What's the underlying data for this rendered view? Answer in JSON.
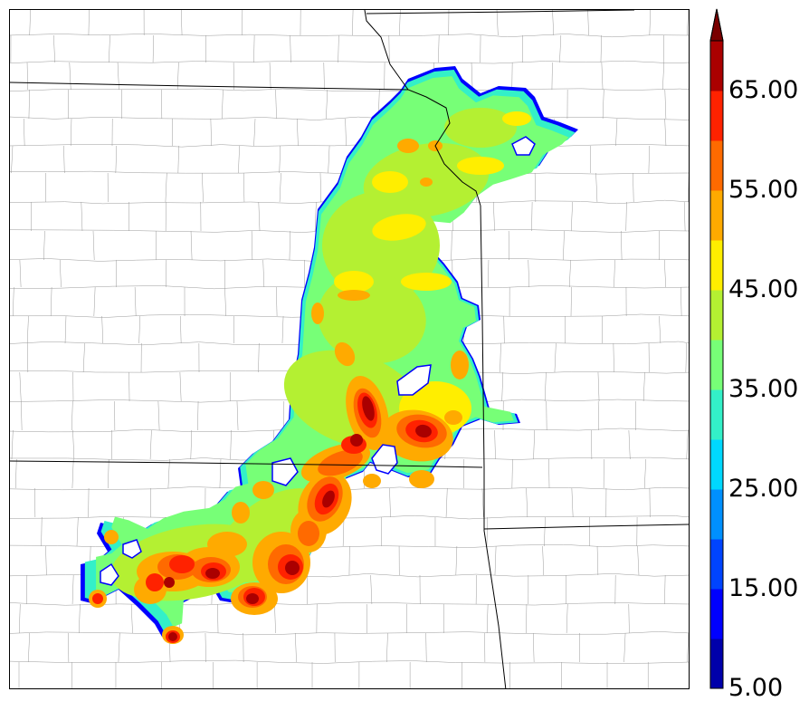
{
  "colorbar": {
    "levels": [
      5,
      10,
      15,
      20,
      25,
      30,
      35,
      40,
      45,
      50,
      55,
      60,
      65,
      70
    ],
    "colors": [
      "#0000aa",
      "#0000ff",
      "#0044ff",
      "#0090ff",
      "#00d8ff",
      "#33f0c8",
      "#77ff77",
      "#b4f032",
      "#ffee00",
      "#ffaa00",
      "#ff6a00",
      "#ff2200",
      "#aa0000"
    ],
    "extend_color": "#7a0000",
    "labels": [
      "5.00",
      "15.00",
      "25.00",
      "35.00",
      "45.00",
      "55.00",
      "65.00"
    ]
  },
  "map": {
    "state_border_color": "#000000",
    "county_border_color": "#999999",
    "field_style": "filled contours"
  }
}
